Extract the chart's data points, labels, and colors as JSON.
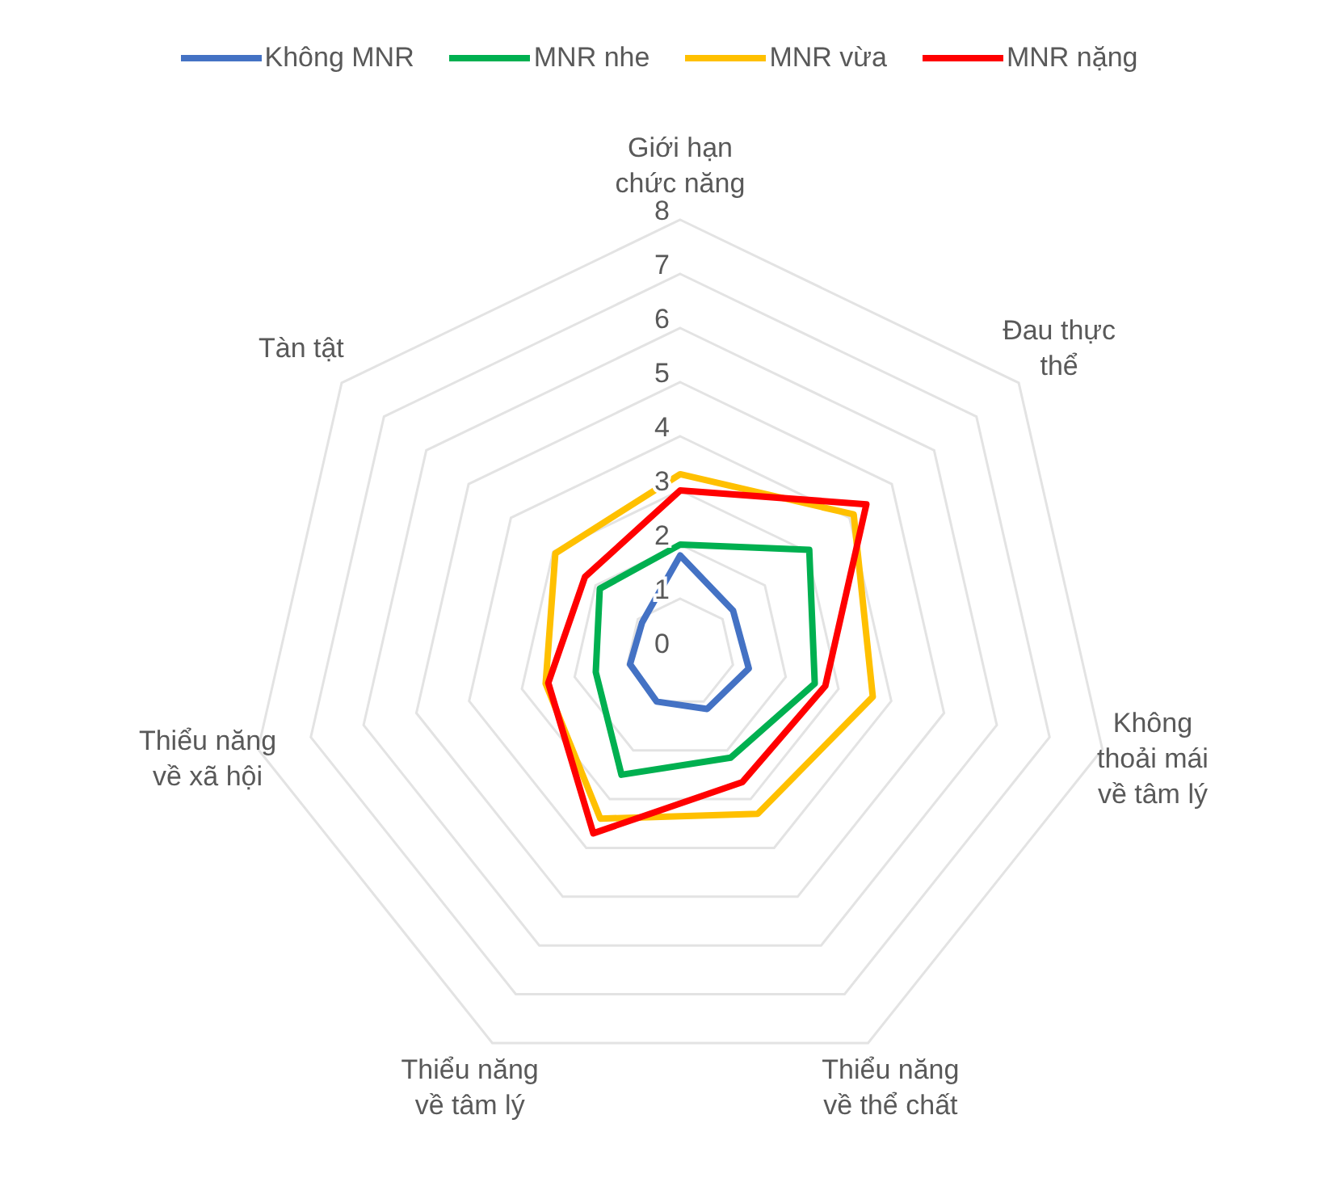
{
  "chart_data": {
    "type": "radar",
    "categories": [
      "Giới hạn chức năng",
      "Đau thực thể",
      "Không thoải mái về tâm lý",
      "Thiểu năng về thể chất",
      "Thiểu năng về tâm lý",
      "Thiểu năng về xã hội",
      "Tàn tật"
    ],
    "series": [
      {
        "name": "Không MNR",
        "color": "#4472c4",
        "values": [
          1.8,
          1.25,
          1.3,
          1.15,
          1.0,
          0.95,
          0.9
        ]
      },
      {
        "name": "MNR nhe",
        "color": "#00b050",
        "values": [
          2.0,
          3.05,
          2.55,
          2.15,
          2.5,
          1.6,
          1.9
        ]
      },
      {
        "name": "MNR vừa",
        "color": "#ffc000",
        "values": [
          3.3,
          4.1,
          3.65,
          3.3,
          3.4,
          2.55,
          2.95
        ]
      },
      {
        "name": "MNR nặng",
        "color": "#ff0000",
        "values": [
          3.0,
          4.4,
          2.75,
          2.65,
          3.7,
          2.5,
          2.25
        ]
      }
    ],
    "ylim": [
      0,
      8
    ],
    "yticks": [
      0,
      1,
      2,
      3,
      4,
      5,
      6,
      7,
      8
    ],
    "grid": true,
    "legend": "top",
    "marker": "none"
  }
}
